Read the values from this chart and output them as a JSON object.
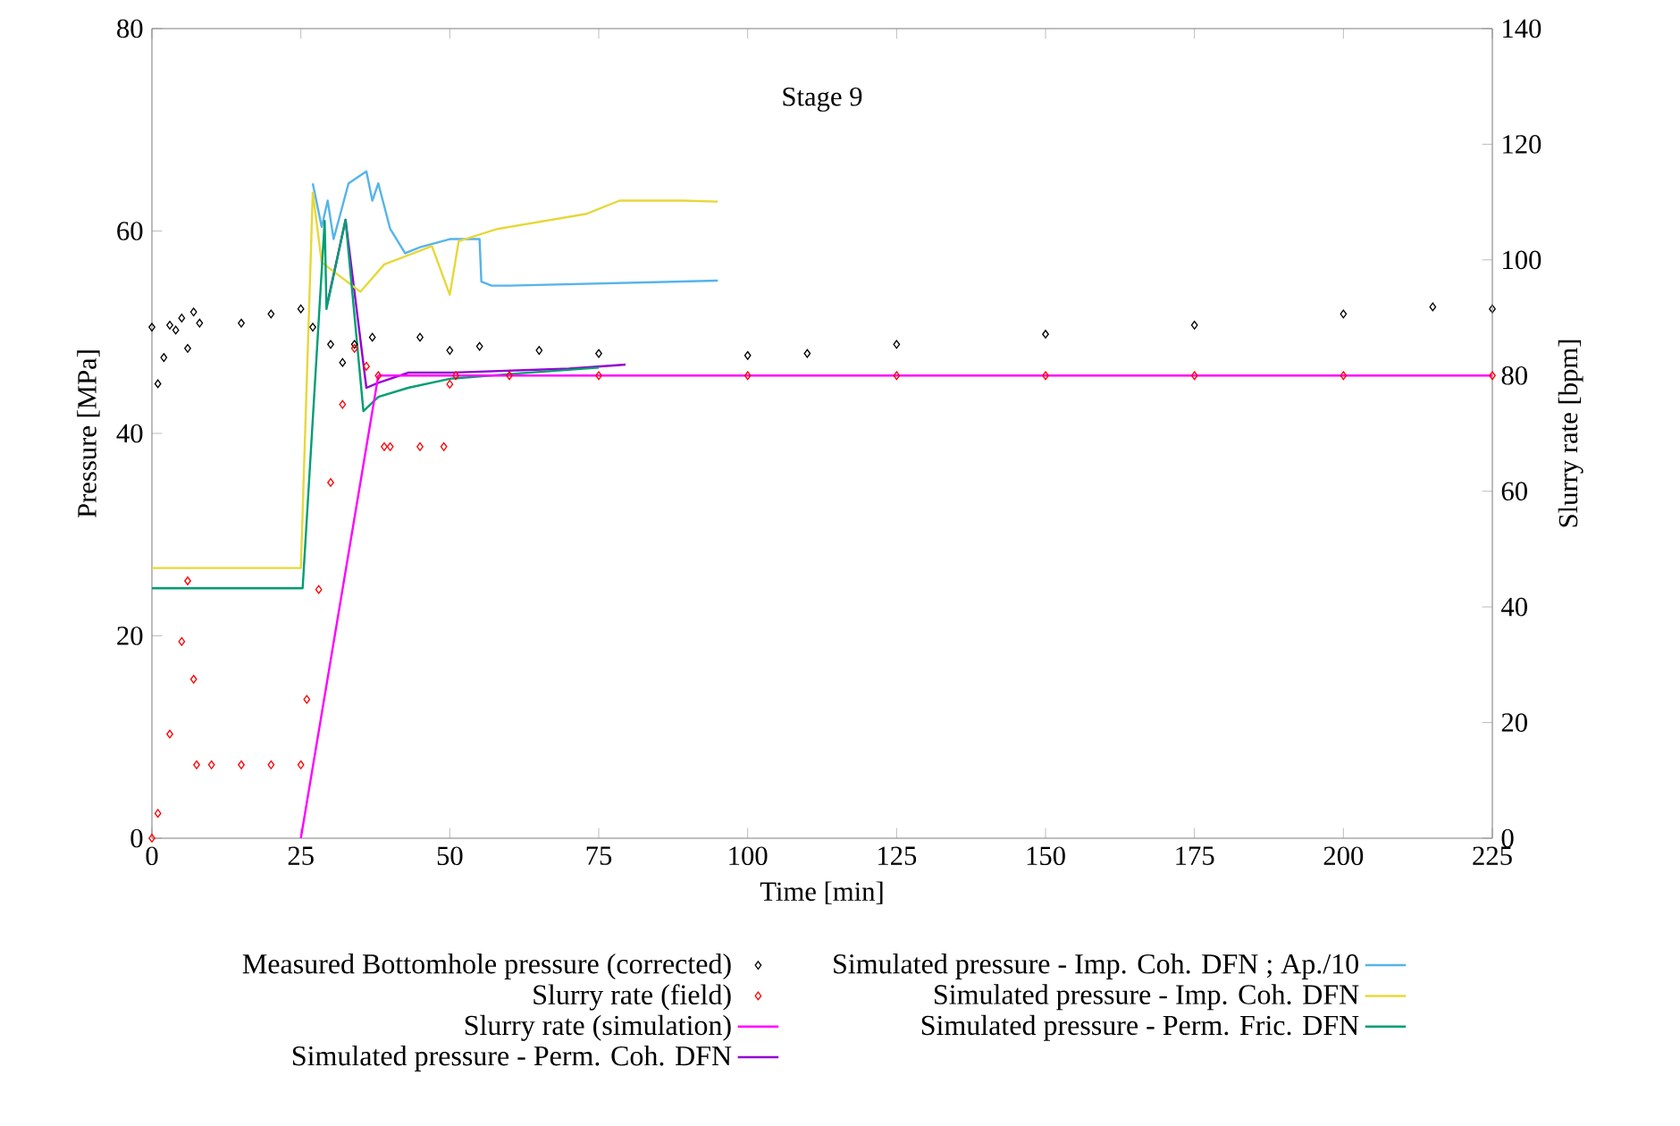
{
  "chart_data": {
    "type": "line",
    "title": "Stage 9",
    "xlabel": "Time [min]",
    "ylabel": "Pressure [MPa]",
    "y2label": "Slurry rate [bpm]",
    "xlim": [
      0,
      225
    ],
    "xticks": [
      0,
      25,
      50,
      75,
      100,
      125,
      150,
      175,
      200,
      225
    ],
    "ylim": [
      0,
      80
    ],
    "yticks": [
      0,
      20,
      40,
      60,
      80
    ],
    "y2lim": [
      0,
      140
    ],
    "y2ticks": [
      0,
      20,
      40,
      60,
      80,
      100,
      120,
      140
    ],
    "legend": "bottom",
    "grid": false,
    "series": [
      {
        "name": "Measured Bottomhole pressure (corrected)",
        "type": "scatter",
        "marker": "diamond",
        "color": "#000000",
        "x": [
          0,
          1,
          2,
          3,
          4,
          5,
          6,
          7,
          8,
          15,
          20,
          25,
          27,
          30,
          32,
          34,
          37,
          45,
          50,
          55,
          65,
          75,
          100,
          110,
          125,
          150,
          175,
          200,
          215,
          225
        ],
        "values": [
          50.5,
          44.9,
          47.5,
          50.7,
          50.2,
          51.4,
          48.4,
          52,
          50.9,
          50.9,
          51.8,
          52.3,
          50.5,
          48.8,
          47,
          48.8,
          49.5,
          49.5,
          48.2,
          48.6,
          48.2,
          47.9,
          47.7,
          47.9,
          48.8,
          49.8,
          50.7,
          51.8,
          52.5,
          52.3
        ]
      },
      {
        "name": "Slurry rate (field)",
        "type": "scatter",
        "marker": "diamond",
        "axis": "y2",
        "color": "#ff0000",
        "x": [
          0,
          1,
          3,
          5,
          6,
          7,
          7.5,
          10,
          15,
          20,
          25,
          26,
          28,
          30,
          32,
          34,
          36,
          38,
          39,
          40,
          45,
          49,
          50,
          51,
          60,
          75,
          100,
          125,
          150,
          175,
          200,
          225
        ],
        "values": [
          0,
          4.3,
          18,
          34,
          44.5,
          27.5,
          12.7,
          12.7,
          12.7,
          12.7,
          12.7,
          24,
          43,
          61.5,
          75,
          84.7,
          81.6,
          80,
          67.7,
          67.7,
          67.7,
          67.7,
          78.5,
          80,
          80,
          80,
          80,
          80,
          80,
          80,
          80,
          80
        ]
      },
      {
        "name": "Slurry rate (simulation)",
        "axis": "y2",
        "color": "#ff00ff",
        "x": [
          25,
          38,
          225
        ],
        "values": [
          0,
          80,
          80
        ]
      },
      {
        "name": "Simulated pressure - Perm. Coh. DFN",
        "color": "#9400d3",
        "x": [
          29.5,
          32.5,
          36,
          38,
          43,
          50,
          70,
          79.5
        ],
        "values": [
          53,
          61.1,
          44.5,
          45,
          46,
          46,
          46.4,
          46.8
        ]
      },
      {
        "name": "Simulated pressure - Imp. Coh. DFN ; Ap./10",
        "color": "#56b4e9",
        "x": [
          27,
          28.5,
          29.5,
          30.5,
          33,
          36,
          37,
          38,
          40,
          42.5,
          45,
          50,
          55,
          55.3,
          57,
          60,
          95
        ],
        "values": [
          64.7,
          60.4,
          63,
          59.2,
          64.7,
          65.9,
          63,
          64.7,
          60.2,
          57.8,
          58.4,
          59.2,
          59.2,
          55,
          54.6,
          54.6,
          55.1
        ]
      },
      {
        "name": "Simulated pressure - Imp. Coh. DFN",
        "color": "#e6d83a",
        "x": [
          0,
          25,
          27,
          28.5,
          35,
          39,
          47,
          50,
          51.5,
          58,
          73,
          78.5,
          89,
          95
        ],
        "values": [
          26.7,
          26.7,
          63.8,
          56.9,
          54,
          56.7,
          58.5,
          53.7,
          59,
          60.2,
          61.7,
          63,
          63,
          62.9
        ]
      },
      {
        "name": "Simulated pressure - Perm. Fric. DFN",
        "color": "#009e73",
        "x": [
          0,
          25,
          25.3,
          29,
          29.3,
          32.5,
          35.5,
          38,
          43,
          50,
          61,
          75
        ],
        "values": [
          24.7,
          24.7,
          24.7,
          61,
          52.3,
          61.1,
          42.2,
          43.6,
          44.5,
          45.4,
          45.9,
          46.5
        ]
      }
    ]
  }
}
